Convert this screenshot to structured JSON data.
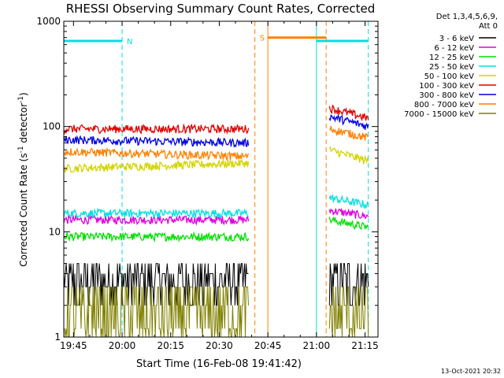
{
  "chart_data": {
    "type": "line",
    "title": "RHESSI Observing Summary Count Rates, Corrected",
    "xlabel": "Start Time (16-Feb-08 19:41:42)",
    "ylabel_prefix": "Corrected Count Rate (s",
    "ylabel_sup1": "-1",
    "ylabel_mid": " detector",
    "ylabel_sup2": "-1",
    "ylabel_suffix": ")",
    "x_unit": "minutes",
    "xlim": [
      1182,
      1279
    ],
    "ylim": [
      1,
      1000
    ],
    "y_scale": "log",
    "x_ticks": [
      {
        "value": 1185,
        "label": "19:45"
      },
      {
        "value": 1200,
        "label": "20:00"
      },
      {
        "value": 1215,
        "label": "20:15"
      },
      {
        "value": 1230,
        "label": "20:30"
      },
      {
        "value": 1245,
        "label": "20:45"
      },
      {
        "value": 1260,
        "label": "21:00"
      },
      {
        "value": 1275,
        "label": "21:15"
      }
    ],
    "y_ticks": [
      {
        "value": 1,
        "label": "1"
      },
      {
        "value": 10,
        "label": "10"
      },
      {
        "value": 100,
        "label": "100"
      },
      {
        "value": 1000,
        "label": "1000"
      }
    ],
    "legend_header": [
      "Det 1,3,4,5,6,9,",
      "Att 0"
    ],
    "legend_placement": "top-right outside",
    "series": [
      {
        "name": "3 - 6 keV",
        "color": "#000000",
        "segments": [
          {
            "x0": 1182,
            "x1": 1239,
            "y0": 3.5,
            "y1": 3.5
          },
          {
            "x0": 1264,
            "x1": 1276,
            "y0": 3.5,
            "y1": 3.5
          }
        ]
      },
      {
        "name": "6 - 12 keV",
        "color": "#e000e0",
        "segments": [
          {
            "x0": 1182,
            "x1": 1239,
            "y0": 13,
            "y1": 13
          },
          {
            "x0": 1264,
            "x1": 1276,
            "y0": 16,
            "y1": 14
          }
        ]
      },
      {
        "name": "12 - 25 keV",
        "color": "#00e000",
        "segments": [
          {
            "x0": 1182,
            "x1": 1239,
            "y0": 9,
            "y1": 9
          },
          {
            "x0": 1264,
            "x1": 1276,
            "y0": 13,
            "y1": 11
          }
        ]
      },
      {
        "name": "25 - 50 keV",
        "color": "#00e0e0",
        "segments": [
          {
            "x0": 1182,
            "x1": 1239,
            "y0": 15,
            "y1": 15
          },
          {
            "x0": 1264,
            "x1": 1276,
            "y0": 21,
            "y1": 18
          }
        ]
      },
      {
        "name": "50 - 100 keV",
        "color": "#d4d400",
        "segments": [
          {
            "x0": 1182,
            "x1": 1239,
            "y0": 40,
            "y1": 45
          },
          {
            "x0": 1264,
            "x1": 1276,
            "y0": 60,
            "y1": 47
          }
        ]
      },
      {
        "name": "100 - 300 keV",
        "color": "#e00000",
        "segments": [
          {
            "x0": 1182,
            "x1": 1239,
            "y0": 95,
            "y1": 95
          },
          {
            "x0": 1264,
            "x1": 1276,
            "y0": 150,
            "y1": 120
          }
        ]
      },
      {
        "name": "300 - 800 keV",
        "color": "#0000e0",
        "segments": [
          {
            "x0": 1182,
            "x1": 1239,
            "y0": 75,
            "y1": 70
          },
          {
            "x0": 1264,
            "x1": 1276,
            "y0": 125,
            "y1": 100
          }
        ]
      },
      {
        "name": "800 - 7000 keV",
        "color": "#ff8000",
        "segments": [
          {
            "x0": 1182,
            "x1": 1239,
            "y0": 58,
            "y1": 52
          },
          {
            "x0": 1264,
            "x1": 1276,
            "y0": 95,
            "y1": 78
          }
        ]
      },
      {
        "name": "7000 - 15000 keV",
        "color": "#808000",
        "segments": [
          {
            "x0": 1182,
            "x1": 1239,
            "y0": 2.2,
            "y1": 2.2
          },
          {
            "x0": 1264,
            "x1": 1276,
            "y0": 2.2,
            "y1": 2.2
          }
        ]
      }
    ],
    "annotations": [
      {
        "label": "N",
        "color": "#00e0e0",
        "bar": {
          "x0": 1182,
          "x1": 1200,
          "y": 650
        },
        "dash_lines": [
          1200
        ],
        "solid_lines": [
          1182
        ]
      },
      {
        "label": "",
        "color": "#00e0e0",
        "bar": {
          "x0": 1260,
          "x1": 1276,
          "y": 650
        },
        "dash_lines": [
          1276
        ],
        "solid_lines": [
          1260
        ]
      },
      {
        "label": "S",
        "color": "#ff8000",
        "bar": {
          "x0": 1245,
          "x1": 1263,
          "y": 700
        },
        "dash_lines": [
          1241,
          1263
        ],
        "solid_lines": [
          1245
        ]
      }
    ],
    "footer_date": "13-Oct-2021 20:32"
  }
}
